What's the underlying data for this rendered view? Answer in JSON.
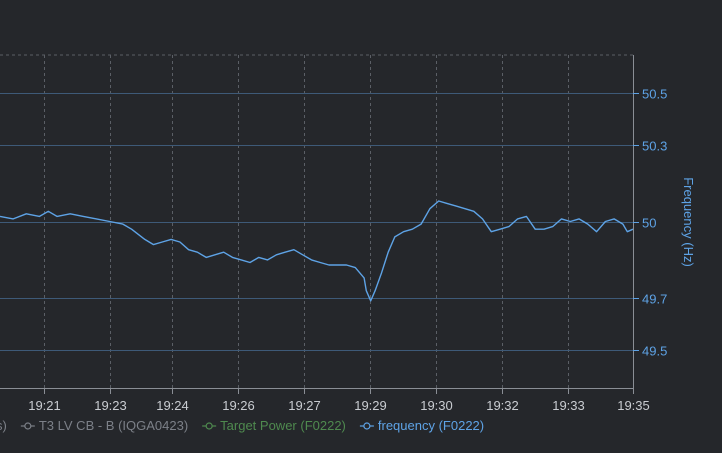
{
  "chart_data": {
    "type": "line",
    "ylabel": "Frequency (Hz)",
    "ylim": [
      49.35,
      50.65
    ],
    "y_ticks": [
      49.5,
      49.7,
      50,
      50.3,
      50.5
    ],
    "x_tick_labels": [
      "19:21",
      "19:23",
      "19:24",
      "19:26",
      "19:27",
      "19:29",
      "19:30",
      "19:32",
      "19:33",
      "19:35"
    ],
    "x_tick_minutes": [
      21.0,
      22.5,
      23.93,
      25.43,
      26.93,
      28.43,
      29.95,
      31.45,
      32.95,
      34.43
    ],
    "xlim": [
      20.0,
      34.43
    ],
    "grid": true,
    "legend_position": "bottom",
    "legend": [
      {
        "label": "s)",
        "color": "#7c8088",
        "marker": "none"
      },
      {
        "label": "T3 LV CB - B (IQGA0423)",
        "color": "#7c8088",
        "marker": "circle"
      },
      {
        "label": "Target Power (F0222)",
        "color": "#4f8a4f",
        "marker": "circle"
      },
      {
        "label": "frequency (F0222)",
        "color": "#5ea3e6",
        "marker": "circle"
      }
    ],
    "series": [
      {
        "name": "frequency (F0222)",
        "color": "#5ea3e6",
        "x": [
          20.0,
          20.3,
          20.6,
          20.9,
          21.1,
          21.3,
          21.6,
          21.9,
          22.2,
          22.5,
          22.8,
          23.0,
          23.3,
          23.5,
          23.7,
          23.9,
          24.1,
          24.3,
          24.5,
          24.7,
          24.9,
          25.1,
          25.3,
          25.5,
          25.7,
          25.9,
          26.1,
          26.3,
          26.5,
          26.7,
          26.9,
          27.1,
          27.3,
          27.5,
          27.7,
          27.9,
          28.1,
          28.3,
          28.35,
          28.45,
          28.55,
          28.7,
          28.85,
          29.0,
          29.2,
          29.4,
          29.6,
          29.8,
          30.0,
          30.2,
          30.4,
          30.6,
          30.8,
          31.0,
          31.2,
          31.4,
          31.6,
          31.8,
          32.0,
          32.2,
          32.4,
          32.6,
          32.8,
          33.0,
          33.2,
          33.4,
          33.6,
          33.8,
          34.0,
          34.2,
          34.3,
          34.43
        ],
        "values": [
          50.02,
          50.01,
          50.03,
          50.02,
          50.04,
          50.02,
          50.03,
          50.02,
          50.01,
          50.0,
          49.99,
          49.97,
          49.93,
          49.91,
          49.92,
          49.93,
          49.92,
          49.89,
          49.88,
          49.86,
          49.87,
          49.88,
          49.86,
          49.85,
          49.84,
          49.86,
          49.85,
          49.87,
          49.88,
          49.89,
          49.87,
          49.85,
          49.84,
          49.83,
          49.83,
          49.83,
          49.82,
          49.78,
          49.73,
          49.69,
          49.73,
          49.8,
          49.88,
          49.94,
          49.96,
          49.97,
          49.99,
          50.05,
          50.08,
          50.07,
          50.06,
          50.05,
          50.04,
          50.01,
          49.96,
          49.97,
          49.98,
          50.01,
          50.02,
          49.97,
          49.97,
          49.98,
          50.01,
          50.0,
          50.01,
          49.99,
          49.96,
          50.0,
          50.01,
          49.99,
          49.96,
          49.97
        ]
      }
    ]
  }
}
